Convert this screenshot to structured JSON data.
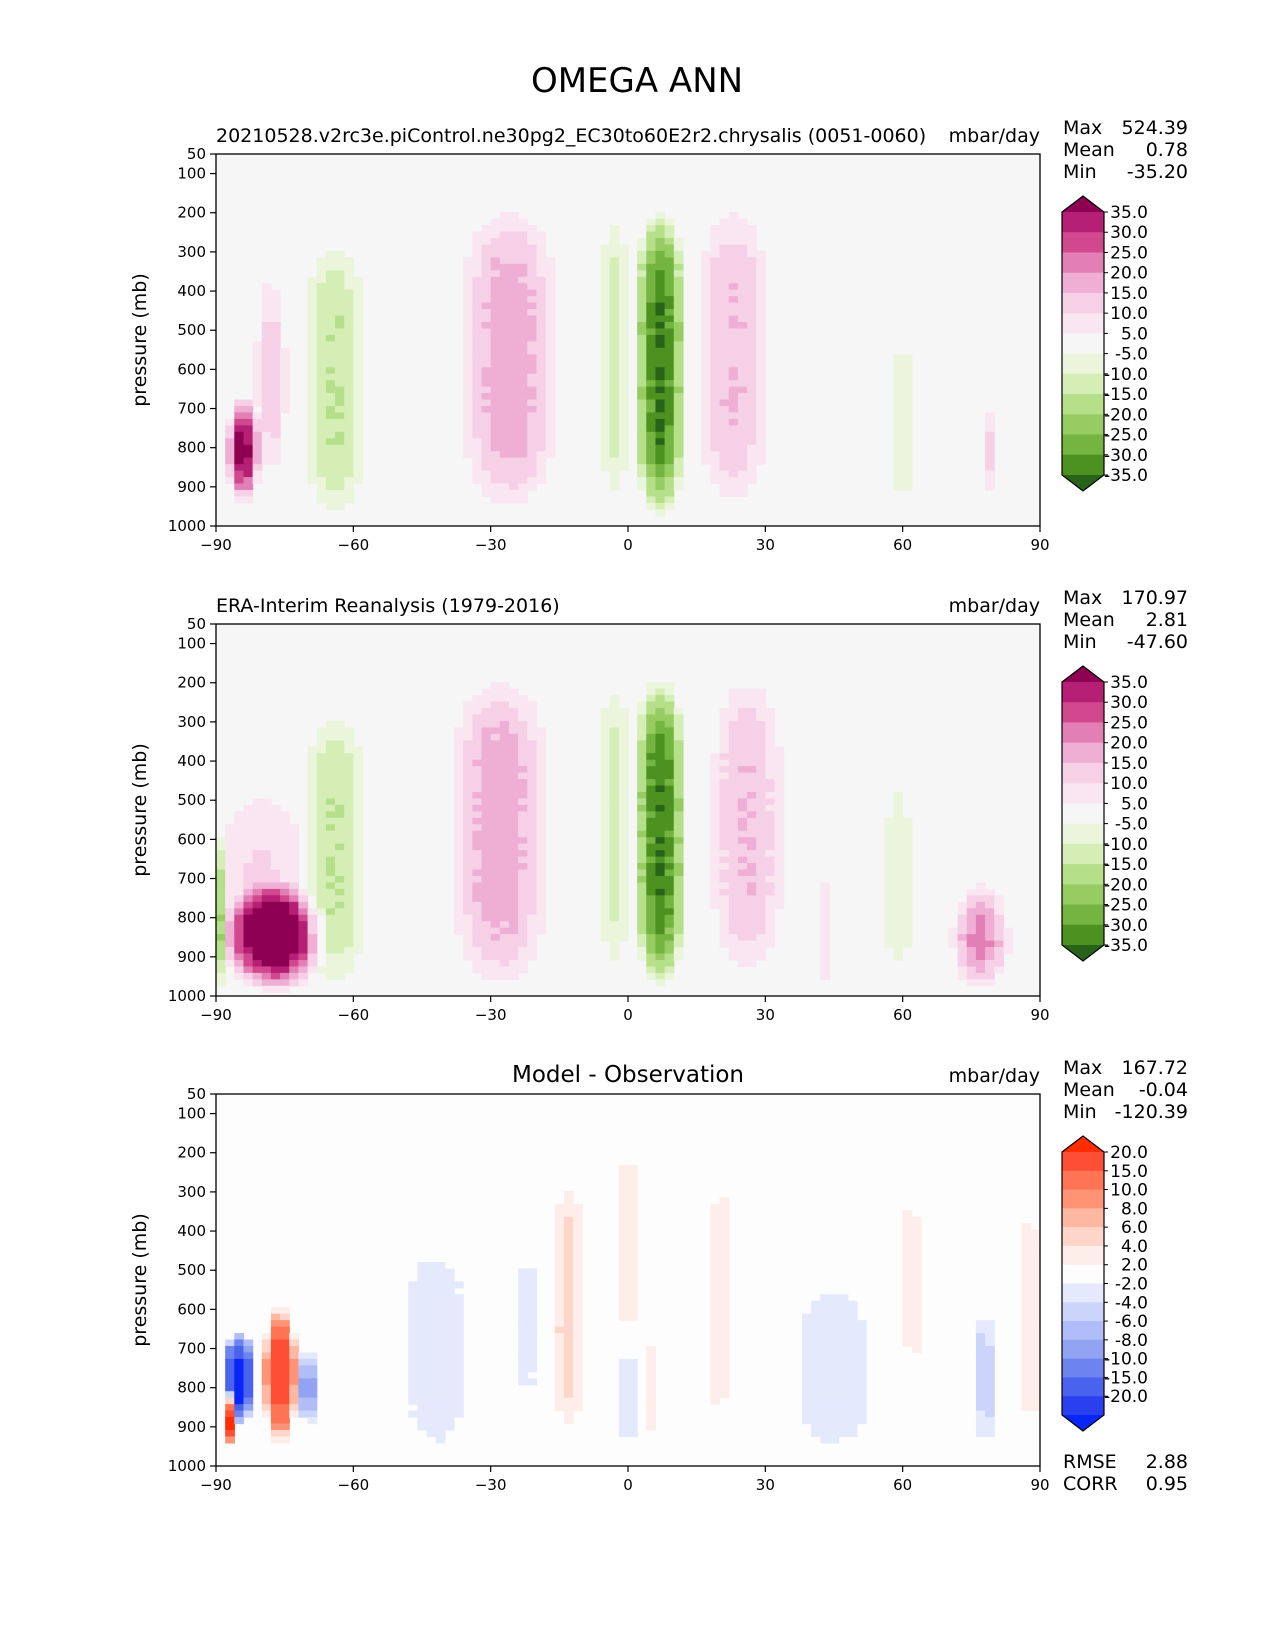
{
  "suptitle": "OMEGA ANN",
  "chart_data": [
    {
      "type": "contour",
      "title_left": "20210528.v2rc3e.piControl.ne30pg2_EC30to60E2r2.chrysalis (0051-0060)",
      "title_center": "",
      "units": "mbar/day",
      "xlabel": "",
      "ylabel": "pressure (mb)",
      "xlim": [
        -90,
        90
      ],
      "ylim": [
        1000,
        50
      ],
      "xticks": [
        "−90",
        "−60",
        "−30",
        "0",
        "30",
        "60",
        "90"
      ],
      "yticks": [
        "50",
        "100",
        "200",
        "300",
        "400",
        "500",
        "600",
        "700",
        "800",
        "900",
        "1000"
      ],
      "stats": {
        "max_label": "Max",
        "max": "524.39",
        "mean_label": "Mean",
        "mean": "0.78",
        "min_label": "Min",
        "min": "-35.20"
      },
      "colorbar": {
        "labels": [
          "35.0",
          "30.0",
          "25.0",
          "20.0",
          "15.0",
          "10.0",
          "5.0",
          "-5.0",
          "-10.0",
          "-15.0",
          "-20.0",
          "-25.0",
          "-30.0",
          "-35.0"
        ],
        "colors": [
          "#8e0152",
          "#b51f74",
          "#d2488e",
          "#e37fb7",
          "#efaed4",
          "#f6d0e7",
          "#f9e6f1",
          "#f6f6f6",
          "#eaf5dc",
          "#d4eeb6",
          "#b6df8a",
          "#97cc63",
          "#74b541",
          "#4d9221",
          "#276419"
        ]
      },
      "features": [
        {
          "shape": "band",
          "lat": 7,
          "p_top": 185,
          "p_bot": 990,
          "half_width": 6,
          "peak": -35
        },
        {
          "shape": "band",
          "lat": -26,
          "p_top": 170,
          "p_bot": 975,
          "half_width": 12,
          "peak": 18
        },
        {
          "shape": "band",
          "lat": 23,
          "p_top": 170,
          "p_bot": 965,
          "half_width": 9,
          "peak": 15
        },
        {
          "shape": "band",
          "lat": -64,
          "p_top": 260,
          "p_bot": 990,
          "half_width": 8,
          "peak": -15
        },
        {
          "shape": "band",
          "lat": -3,
          "p_top": 180,
          "p_bot": 950,
          "half_width": 4,
          "peak": -12
        },
        {
          "shape": "band",
          "lat": 60,
          "p_top": 500,
          "p_bot": 975,
          "half_width": 4,
          "peak": -8
        },
        {
          "shape": "patch",
          "lat": -84,
          "p_top": 660,
          "p_bot": 950,
          "half_width": 4,
          "peak": 40
        },
        {
          "shape": "patch",
          "lat": -78,
          "p_top": 320,
          "p_bot": 920,
          "half_width": 4,
          "peak": 14
        },
        {
          "shape": "patch",
          "lat": 79,
          "p_top": 680,
          "p_bot": 940,
          "half_width": 2,
          "peak": 12
        }
      ]
    },
    {
      "type": "contour",
      "title_left": "ERA-Interim Reanalysis (1979-2016)",
      "title_center": "",
      "units": "mbar/day",
      "xlabel": "",
      "ylabel": "pressure (mb)",
      "xlim": [
        -90,
        90
      ],
      "ylim": [
        1000,
        50
      ],
      "xticks": [
        "−90",
        "−60",
        "−30",
        "0",
        "30",
        "60",
        "90"
      ],
      "yticks": [
        "50",
        "100",
        "200",
        "300",
        "400",
        "500",
        "600",
        "700",
        "800",
        "900",
        "1000"
      ],
      "stats": {
        "max_label": "Max",
        "max": "170.97",
        "mean_label": "Mean",
        "mean": "2.81",
        "min_label": "Min",
        "min": "-47.60"
      },
      "colorbar": {
        "labels": [
          "35.0",
          "30.0",
          "25.0",
          "20.0",
          "15.0",
          "10.0",
          "5.0",
          "-5.0",
          "-10.0",
          "-15.0",
          "-20.0",
          "-25.0",
          "-30.0",
          "-35.0"
        ],
        "colors": [
          "#8e0152",
          "#b51f74",
          "#d2488e",
          "#e37fb7",
          "#efaed4",
          "#f6d0e7",
          "#f9e6f1",
          "#f6f6f6",
          "#eaf5dc",
          "#d4eeb6",
          "#b6df8a",
          "#97cc63",
          "#74b541",
          "#4d9221",
          "#276419"
        ]
      },
      "features": [
        {
          "shape": "band",
          "lat": 7,
          "p_top": 175,
          "p_bot": 990,
          "half_width": 6,
          "peak": -35
        },
        {
          "shape": "band",
          "lat": -28,
          "p_top": 170,
          "p_bot": 990,
          "half_width": 12,
          "peak": 18
        },
        {
          "shape": "band",
          "lat": 26,
          "p_top": 170,
          "p_bot": 965,
          "half_width": 9,
          "peak": 15
        },
        {
          "shape": "band",
          "lat": -64,
          "p_top": 260,
          "p_bot": 990,
          "half_width": 8,
          "peak": -15
        },
        {
          "shape": "band",
          "lat": -3,
          "p_top": 180,
          "p_bot": 950,
          "half_width": 4,
          "peak": -12
        },
        {
          "shape": "band",
          "lat": 59,
          "p_top": 420,
          "p_bot": 975,
          "half_width": 4,
          "peak": -8
        },
        {
          "shape": "band",
          "lat": 43,
          "p_top": 680,
          "p_bot": 990,
          "half_width": 3,
          "peak": 8
        },
        {
          "shape": "patch",
          "lat": -77,
          "p_top": 700,
          "p_bot": 1000,
          "half_width": 12,
          "peak": 40
        },
        {
          "shape": "patch",
          "lat": -80,
          "p_top": 420,
          "p_bot": 990,
          "half_width": 13,
          "peak": 11
        },
        {
          "shape": "patch",
          "lat": 77,
          "p_top": 700,
          "p_bot": 1000,
          "half_width": 7,
          "peak": 22
        },
        {
          "shape": "patch",
          "lat": -89,
          "p_top": 550,
          "p_bot": 1000,
          "half_width": 1,
          "peak": -25
        }
      ]
    },
    {
      "type": "contour",
      "title_left": "",
      "title_center": "Model - Observation",
      "units": "mbar/day",
      "xlabel": "",
      "ylabel": "pressure (mb)",
      "xlim": [
        -90,
        90
      ],
      "ylim": [
        1000,
        50
      ],
      "xticks": [
        "−90",
        "−60",
        "−30",
        "0",
        "30",
        "60",
        "90"
      ],
      "yticks": [
        "50",
        "100",
        "200",
        "300",
        "400",
        "500",
        "600",
        "700",
        "800",
        "900",
        "1000"
      ],
      "stats": {
        "max_label": "Max",
        "max": "167.72",
        "mean_label": "Mean",
        "mean": "-0.04",
        "min_label": "Min",
        "min": "-120.39"
      },
      "extra_stats": {
        "rmse_label": "RMSE",
        "rmse": "2.88",
        "corr_label": "CORR",
        "corr": "0.95"
      },
      "colorbar": {
        "labels": [
          "20.0",
          "15.0",
          "10.0",
          "8.0",
          "6.0",
          "4.0",
          "2.0",
          "-2.0",
          "-4.0",
          "-6.0",
          "-8.0",
          "-10.0",
          "-15.0",
          "-20.0"
        ],
        "colors": [
          "#ff2d00",
          "#fe4f35",
          "#fe7455",
          "#fe9475",
          "#fdb8a1",
          "#fdd6c9",
          "#fdeee9",
          "#fdfdfd",
          "#e5e9fc",
          "#cbd4fb",
          "#b0bdf8",
          "#92a3f4",
          "#6d83ef",
          "#4a63ee",
          "#2a3ff0",
          "#0726f7"
        ]
      },
      "features": [
        {
          "shape": "band",
          "lat": -13,
          "p_top": 250,
          "p_bot": 930,
          "half_width": 4,
          "peak": 5
        },
        {
          "shape": "band",
          "lat": 0,
          "p_top": 150,
          "p_bot": 700,
          "half_width": 2,
          "peak": 4
        },
        {
          "shape": "band",
          "lat": 5,
          "p_top": 650,
          "p_bot": 950,
          "half_width": 2,
          "peak": 3
        },
        {
          "shape": "band",
          "lat": 20,
          "p_top": 200,
          "p_bot": 950,
          "half_width": 3,
          "peak": 3
        },
        {
          "shape": "band",
          "lat": 62,
          "p_top": 250,
          "p_bot": 800,
          "half_width": 4,
          "peak": 2.5
        },
        {
          "shape": "band",
          "lat": 88,
          "p_top": 300,
          "p_bot": 950,
          "half_width": 4,
          "peak": 3
        },
        {
          "shape": "band",
          "lat": -42,
          "p_top": 400,
          "p_bot": 1000,
          "half_width": 10,
          "peak": -3
        },
        {
          "shape": "band",
          "lat": -22,
          "p_top": 380,
          "p_bot": 900,
          "half_width": 3,
          "peak": -2.5
        },
        {
          "shape": "band",
          "lat": 45,
          "p_top": 500,
          "p_bot": 1000,
          "half_width": 12,
          "peak": -3
        },
        {
          "shape": "band",
          "lat": 0,
          "p_top": 700,
          "p_bot": 950,
          "half_width": 3,
          "peak": -4
        },
        {
          "shape": "band",
          "lat": 78,
          "p_top": 600,
          "p_bot": 950,
          "half_width": 3,
          "peak": -5
        },
        {
          "shape": "patch",
          "lat": -76,
          "p_top": 580,
          "p_bot": 950,
          "half_width": 4,
          "peak": 20
        },
        {
          "shape": "patch",
          "lat": -85,
          "p_top": 650,
          "p_bot": 900,
          "half_width": 4,
          "peak": -25
        },
        {
          "shape": "patch",
          "lat": -70,
          "p_top": 700,
          "p_bot": 900,
          "half_width": 3,
          "peak": -10
        },
        {
          "shape": "patch",
          "lat": -87,
          "p_top": 800,
          "p_bot": 950,
          "half_width": 2,
          "peak": 25
        }
      ]
    }
  ]
}
